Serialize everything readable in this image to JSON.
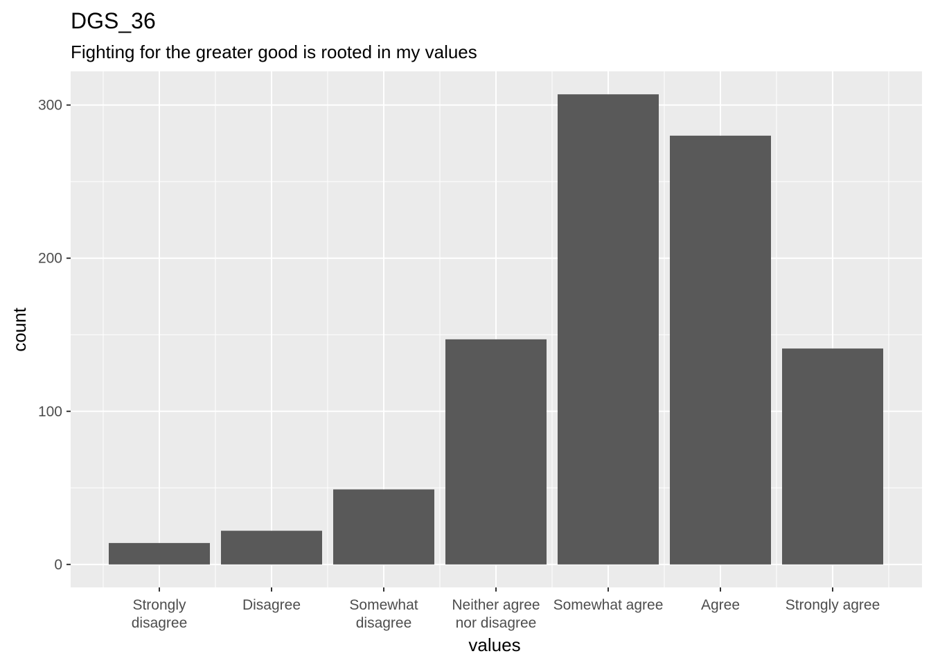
{
  "chart_data": {
    "type": "bar",
    "title": "DGS_36",
    "subtitle": "Fighting for the greater good is rooted in my values",
    "xlabel": "values",
    "ylabel": "count",
    "categories": [
      [
        "Strongly",
        "disagree"
      ],
      [
        "Disagree"
      ],
      [
        "Somewhat",
        "disagree"
      ],
      [
        "Neither agree",
        "nor disagree"
      ],
      [
        "Somewhat agree"
      ],
      [
        "Agree"
      ],
      [
        "Strongly agree"
      ]
    ],
    "values": [
      14,
      22,
      49,
      147,
      307,
      280,
      141
    ],
    "ylim": [
      -15,
      322
    ],
    "yticks": [
      0,
      100,
      200,
      300
    ],
    "ytick_labels": [
      "0",
      "100",
      "200",
      "300"
    ],
    "grid": true,
    "legend": "none",
    "colors": {
      "bar": "#595959",
      "panel": "#ebebeb",
      "grid": "#ffffff",
      "tick_text": "#4d4d4d",
      "tick_mark": "#333333"
    }
  }
}
